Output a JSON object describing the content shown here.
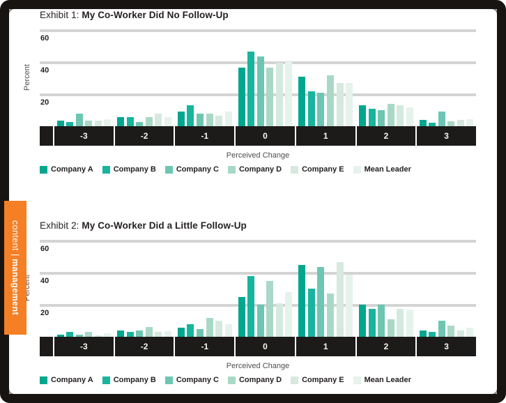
{
  "frame": {
    "tab": {
      "left_text": "content",
      "divider": "|",
      "right_text": "management",
      "color": "#f57f25"
    }
  },
  "style_colors": {
    "gridline": "#d4d4d4",
    "axis_band": "#1d1b1a",
    "frame_border": "#171412"
  },
  "chart_data": [
    {
      "type": "bar",
      "exhibit_label": "Exhibit 1:",
      "title": "My Co-Worker Did No Follow-Up",
      "ylabel": "Percent",
      "xlabel": "Perceived Change",
      "ylim": [
        0,
        60
      ],
      "yticks": [
        "60",
        "40",
        "20"
      ],
      "grid": "horizontal",
      "legend_position": "bottom",
      "categories": [
        "-3",
        "-2",
        "-1",
        "0",
        "1",
        "2",
        "3"
      ],
      "series": [
        {
          "name": "Company A",
          "color": "#00a78e",
          "values": [
            3.5,
            5.5,
            9,
            37,
            31,
            13,
            4
          ]
        },
        {
          "name": "Company B",
          "color": "#18b49d",
          "values": [
            2.5,
            5.5,
            13,
            47,
            22,
            11,
            2
          ]
        },
        {
          "name": "Company C",
          "color": "#6dc6b2",
          "values": [
            8,
            2.5,
            8,
            44,
            21,
            10,
            9
          ]
        },
        {
          "name": "Company D",
          "color": "#aad8c6",
          "values": [
            3.5,
            5.5,
            8,
            37,
            32,
            14,
            3
          ]
        },
        {
          "name": "Company E",
          "color": "#d5e9df",
          "values": [
            3.5,
            8,
            6.5,
            40,
            27,
            13,
            4
          ]
        },
        {
          "name": "Mean Leader",
          "color": "#e6f2ec",
          "values": [
            4.5,
            5.5,
            9,
            41,
            27,
            12,
            4.5
          ]
        }
      ]
    },
    {
      "type": "bar",
      "exhibit_label": "Exhibit 2:",
      "title": "My Co-Worker Did a Little Follow-Up",
      "ylabel": "Percent",
      "xlabel": "Perceived Change",
      "ylim": [
        0,
        60
      ],
      "yticks": [
        "60",
        "40",
        "20"
      ],
      "grid": "horizontal",
      "legend_position": "bottom",
      "categories": [
        "-3",
        "-2",
        "-1",
        "0",
        "1",
        "2",
        "3"
      ],
      "series": [
        {
          "name": "Company A",
          "color": "#00a78e",
          "values": [
            1.5,
            4,
            5.5,
            25,
            45,
            20,
            4
          ]
        },
        {
          "name": "Company B",
          "color": "#18b49d",
          "values": [
            3,
            3,
            8,
            38,
            30,
            17.5,
            3
          ]
        },
        {
          "name": "Company C",
          "color": "#6dc6b2",
          "values": [
            1.5,
            4,
            5,
            20,
            44,
            20,
            10
          ]
        },
        {
          "name": "Company D",
          "color": "#aad8c6",
          "values": [
            3,
            6,
            12,
            35,
            27,
            11,
            7
          ]
        },
        {
          "name": "Company E",
          "color": "#d5e9df",
          "values": [
            1,
            3,
            10,
            21,
            47,
            17.5,
            4
          ]
        },
        {
          "name": "Mean Leader",
          "color": "#e6f2ec",
          "values": [
            2,
            3.5,
            8,
            28,
            39,
            17,
            5.5
          ]
        }
      ]
    }
  ]
}
